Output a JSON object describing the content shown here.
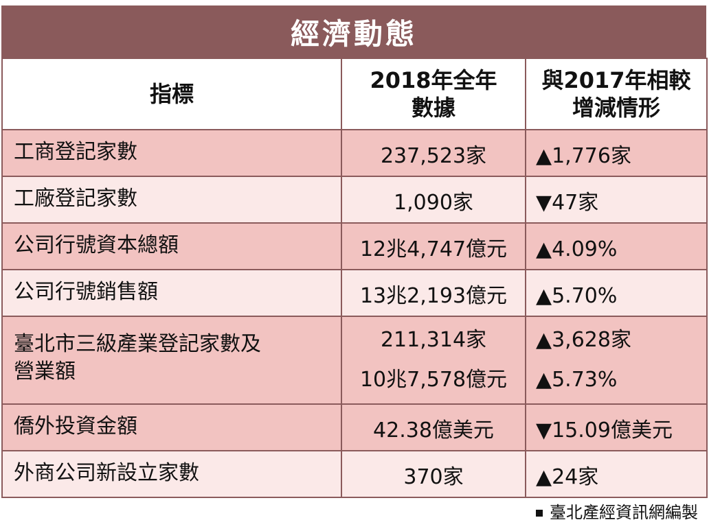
{
  "title": "經濟動態",
  "headers": {
    "indicator": "指標",
    "data_2018_line1": "2018年全年",
    "data_2018_line2": "數據",
    "compare_line1": "與2017年相較",
    "compare_line2": "增減情形"
  },
  "rows": [
    {
      "indicator": "工商登記家數",
      "value": "237,523家",
      "change": "▲1,776家"
    },
    {
      "indicator": "工廠登記家數",
      "value": "1,090家",
      "change": "▼47家"
    },
    {
      "indicator": "公司行號資本總額",
      "value": "12兆4,747億元",
      "change": "▲4.09%"
    },
    {
      "indicator": "公司行號銷售額",
      "value": "13兆2,193億元",
      "change": "▲5.70%"
    },
    {
      "indicator_line1": "臺北市三級產業登記家數及",
      "indicator_line2": "營業額",
      "value1": "211,314家",
      "value2": "10兆7,578億元",
      "change1": "▲3,628家",
      "change2": "▲5.73%"
    },
    {
      "indicator": "僑外投資金額",
      "value": "42.38億美元",
      "change": "▼15.09億美元"
    },
    {
      "indicator": "外商公司新設立家數",
      "value": "370家",
      "change": "▲24家"
    }
  ],
  "footer": "臺北產經資訊網編製"
}
